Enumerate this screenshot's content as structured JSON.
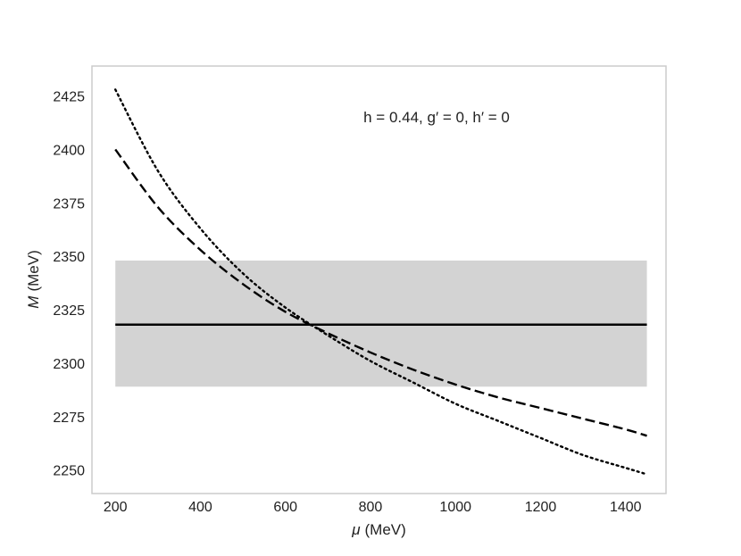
{
  "chart_data": {
    "type": "line",
    "xlabel_var": "μ",
    "xlabel_unit": "(MeV)",
    "ylabel_var": "M",
    "ylabel_unit": "(MeV)",
    "xlim": [
      145,
      1495
    ],
    "ylim": [
      2239,
      2439
    ],
    "x_ticks": [
      200,
      400,
      600,
      800,
      1000,
      1200,
      1400
    ],
    "y_ticks": [
      2250,
      2275,
      2300,
      2325,
      2350,
      2375,
      2400,
      2425
    ],
    "grid": false,
    "annotation": {
      "text": "h = 0.44, g′ = 0, h′ = 0",
      "position": "top-center"
    },
    "band": {
      "x": [
        200,
        1450
      ],
      "y": [
        2289,
        2348
      ],
      "color": "#d3d3d3"
    },
    "series": [
      {
        "style": "solid",
        "color": "#000000",
        "x": [
          200,
          1450
        ],
        "y": [
          2318,
          2318
        ]
      },
      {
        "style": "dashed",
        "color": "#000000",
        "x": [
          200,
          300,
          400,
          500,
          600,
          700,
          800,
          900,
          1000,
          1100,
          1200,
          1300,
          1400,
          1450
        ],
        "y": [
          2400,
          2373,
          2353,
          2337,
          2324,
          2314,
          2305,
          2297,
          2290,
          2284,
          2279,
          2274,
          2269,
          2266
        ]
      },
      {
        "style": "dotted",
        "color": "#000000",
        "x": [
          200,
          300,
          400,
          500,
          600,
          700,
          800,
          900,
          1000,
          1100,
          1200,
          1300,
          1400,
          1450
        ],
        "y": [
          2428,
          2390,
          2363,
          2342,
          2326,
          2313,
          2301,
          2291,
          2281,
          2273,
          2265,
          2257,
          2251,
          2248
        ]
      }
    ]
  }
}
